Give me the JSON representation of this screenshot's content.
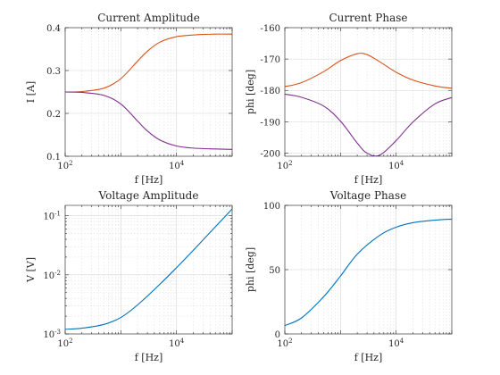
{
  "chart_data": [
    {
      "type": "line",
      "title": "Current Amplitude",
      "xlabel": "f [Hz]",
      "ylabel": "I [A]",
      "xscale": "log",
      "yscale": "linear",
      "xlim": [
        100,
        100000
      ],
      "ylim": [
        0.1,
        0.4
      ],
      "xticks": [
        {
          "value": 100,
          "base": "10",
          "exp": "2"
        },
        {
          "value": 10000,
          "base": "10",
          "exp": "4"
        }
      ],
      "yticks": [
        {
          "value": 0.1,
          "label": "0.1"
        },
        {
          "value": 0.2,
          "label": "0.2"
        },
        {
          "value": 0.3,
          "label": "0.3"
        },
        {
          "value": 0.4,
          "label": "0.4"
        }
      ],
      "grid": true,
      "series": [
        {
          "color": "#D95319",
          "x": [
            100,
            200,
            500,
            1000,
            2000,
            3000,
            5000,
            10000,
            20000,
            50000,
            100000
          ],
          "y": [
            0.25,
            0.251,
            0.259,
            0.281,
            0.322,
            0.345,
            0.366,
            0.379,
            0.383,
            0.385,
            0.385
          ]
        },
        {
          "color": "#7E2F8E",
          "x": [
            100,
            200,
            500,
            1000,
            2000,
            3000,
            5000,
            10000,
            20000,
            50000,
            100000
          ],
          "y": [
            0.25,
            0.249,
            0.242,
            0.222,
            0.182,
            0.159,
            0.138,
            0.124,
            0.119,
            0.117,
            0.116
          ]
        }
      ]
    },
    {
      "type": "line",
      "title": "Current Phase",
      "xlabel": "f [Hz]",
      "ylabel": "phi [deg]",
      "xscale": "log",
      "yscale": "linear",
      "xlim": [
        100,
        100000
      ],
      "ylim": [
        -201,
        -160
      ],
      "xticks": [
        {
          "value": 100,
          "base": "10",
          "exp": "2"
        },
        {
          "value": 10000,
          "base": "10",
          "exp": "4"
        }
      ],
      "yticks": [
        {
          "value": -160,
          "label": "-160"
        },
        {
          "value": -170,
          "label": "-170"
        },
        {
          "value": -180,
          "label": "-180"
        },
        {
          "value": -190,
          "label": "-190"
        },
        {
          "value": -200,
          "label": "-200"
        }
      ],
      "grid": true,
      "series": [
        {
          "color": "#D95319",
          "x": [
            100,
            200,
            500,
            1000,
            2000,
            3000,
            5000,
            10000,
            20000,
            50000,
            100000
          ],
          "y": [
            -178.8,
            -177.5,
            -174.0,
            -170.5,
            -168.3,
            -168.6,
            -170.8,
            -174.2,
            -176.7,
            -178.6,
            -179.3
          ]
        },
        {
          "color": "#7E2F8E",
          "x": [
            100,
            200,
            500,
            1000,
            2000,
            3000,
            5000,
            10000,
            20000,
            50000,
            100000
          ],
          "y": [
            -181.2,
            -182.2,
            -185.0,
            -189.8,
            -196.8,
            -200.0,
            -200.7,
            -196.0,
            -190.1,
            -184.3,
            -182.3
          ]
        }
      ]
    },
    {
      "type": "line",
      "title": "Voltage Amplitude",
      "xlabel": "f [Hz]",
      "ylabel": "V [V]",
      "xscale": "log",
      "yscale": "log",
      "xlim": [
        100,
        100000
      ],
      "ylim": [
        0.001,
        0.15
      ],
      "xticks": [
        {
          "value": 100,
          "base": "10",
          "exp": "2"
        },
        {
          "value": 10000,
          "base": "10",
          "exp": "4"
        }
      ],
      "yticks": [
        {
          "value": 0.001,
          "base": "10",
          "exp": "-3"
        },
        {
          "value": 0.01,
          "base": "10",
          "exp": "-2"
        },
        {
          "value": 0.1,
          "base": "10",
          "exp": "-1"
        }
      ],
      "grid": true,
      "series": [
        {
          "color": "#0072BD",
          "x": [
            100,
            200,
            500,
            1000,
            2000,
            5000,
            10000,
            20000,
            50000,
            100000
          ],
          "y": [
            0.0012,
            0.00125,
            0.00145,
            0.0019,
            0.0031,
            0.0069,
            0.0132,
            0.026,
            0.065,
            0.13
          ]
        }
      ]
    },
    {
      "type": "line",
      "title": "Voltage Phase",
      "xlabel": "f [Hz]",
      "ylabel": "phi [deg]",
      "xscale": "log",
      "yscale": "linear",
      "xlim": [
        100,
        100000
      ],
      "ylim": [
        0,
        100
      ],
      "xticks": [
        {
          "value": 100,
          "base": "10",
          "exp": "2"
        },
        {
          "value": 10000,
          "base": "10",
          "exp": "4"
        }
      ],
      "yticks": [
        {
          "value": 0,
          "label": "0"
        },
        {
          "value": 50,
          "label": "50"
        },
        {
          "value": 100,
          "label": "100"
        }
      ],
      "grid": true,
      "series": [
        {
          "color": "#0072BD",
          "x": [
            100,
            200,
            500,
            1000,
            2000,
            5000,
            10000,
            20000,
            50000,
            100000
          ],
          "y": [
            6.5,
            12.5,
            29.0,
            45.0,
            62.0,
            76.5,
            83.0,
            86.5,
            88.5,
            89.3
          ]
        }
      ]
    }
  ]
}
